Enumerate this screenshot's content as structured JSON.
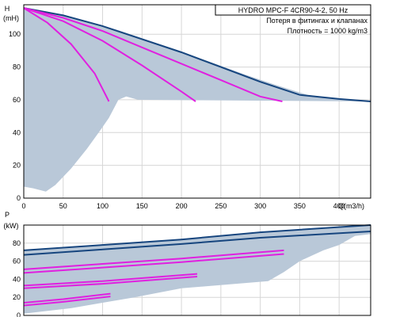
{
  "chart_data": [
    {
      "type": "line",
      "title": "HYDRO MPC-F 4CR90-4-2, 50 Hz",
      "notes": [
        "Потеря в фитингах и клапанах",
        "Плотность = 1000 kg/m3"
      ],
      "ylabel": "H",
      "yunit": "(mH)",
      "xlabel": "Q(m3/h)",
      "xlim": [
        0,
        440
      ],
      "ylim": [
        0,
        118
      ],
      "xticks": [
        0,
        50,
        100,
        150,
        200,
        250,
        300,
        350,
        400
      ],
      "yticks": [
        0,
        20,
        40,
        60,
        80,
        100
      ],
      "grid": true,
      "colors": {
        "max_curve": "#16457e",
        "pump_curves": "#e020e0",
        "region": "#b9c8d8"
      },
      "region": [
        [
          0,
          116
        ],
        [
          8,
          115.5
        ],
        [
          27,
          114
        ],
        [
          50,
          111.5
        ],
        [
          80,
          108
        ],
        [
          120,
          102.5
        ],
        [
          160,
          96
        ],
        [
          200,
          89.5
        ],
        [
          240,
          82.5
        ],
        [
          280,
          75.5
        ],
        [
          320,
          69
        ],
        [
          360,
          63
        ],
        [
          400,
          60.5
        ],
        [
          420,
          59.5
        ],
        [
          440,
          59
        ],
        [
          440,
          59
        ],
        [
          145,
          60
        ],
        [
          130,
          62
        ],
        [
          120,
          60
        ],
        [
          108,
          49
        ],
        [
          95,
          40
        ],
        [
          80,
          30
        ],
        [
          60,
          18
        ],
        [
          40,
          8
        ],
        [
          28,
          4
        ],
        [
          12,
          6
        ],
        [
          0,
          7
        ]
      ],
      "series": [
        {
          "x": [
            0,
            50,
            100,
            150,
            200,
            250,
            300,
            350,
            400,
            440
          ],
          "y": [
            116,
            111.5,
            105,
            97,
            89,
            80,
            71,
            63,
            60.5,
            59
          ]
        },
        {
          "x": [
            0,
            50,
            100,
            150,
            200,
            250,
            300,
            328
          ],
          "y": [
            116,
            110,
            102,
            92,
            82,
            72,
            62,
            59
          ]
        },
        {
          "x": [
            0,
            50,
            100,
            150,
            200,
            218
          ],
          "y": [
            116,
            108,
            96,
            81,
            65,
            59
          ]
        },
        {
          "x": [
            0,
            30,
            60,
            90,
            108
          ],
          "y": [
            116,
            107,
            94,
            76,
            59
          ]
        }
      ]
    },
    {
      "type": "line",
      "ylabel": "P",
      "yunit": "(kW)",
      "xlim": [
        0,
        440
      ],
      "ylim": [
        0,
        100
      ],
      "yticks": [
        0,
        20,
        40,
        60,
        80
      ],
      "grid": true,
      "region": [
        [
          0,
          72
        ],
        [
          100,
          78
        ],
        [
          200,
          84
        ],
        [
          300,
          92
        ],
        [
          440,
          100
        ],
        [
          440,
          90
        ],
        [
          420,
          88
        ],
        [
          400,
          78
        ],
        [
          380,
          72
        ],
        [
          350,
          60
        ],
        [
          330,
          48
        ],
        [
          310,
          38
        ],
        [
          200,
          30
        ],
        [
          140,
          20
        ],
        [
          100,
          14
        ],
        [
          60,
          8
        ],
        [
          0,
          2
        ]
      ],
      "series": [
        {
          "x": [
            0,
            100,
            200,
            300,
            440
          ],
          "y": [
            72,
            78,
            84,
            92,
            100
          ]
        },
        {
          "x": [
            0,
            100,
            200,
            300,
            440
          ],
          "y": [
            67,
            73,
            79,
            86,
            93
          ]
        },
        {
          "x": [
            0,
            100,
            200,
            330
          ],
          "y": [
            51,
            57,
            63,
            72
          ]
        },
        {
          "x": [
            0,
            100,
            200,
            330
          ],
          "y": [
            47,
            53,
            59,
            68
          ]
        },
        {
          "x": [
            0,
            100,
            220
          ],
          "y": [
            33,
            38,
            46
          ]
        },
        {
          "x": [
            0,
            100,
            220
          ],
          "y": [
            30,
            35,
            43
          ]
        },
        {
          "x": [
            0,
            50,
            110
          ],
          "y": [
            14,
            18,
            24
          ]
        },
        {
          "x": [
            0,
            50,
            110
          ],
          "y": [
            11,
            15,
            21
          ]
        }
      ]
    }
  ]
}
